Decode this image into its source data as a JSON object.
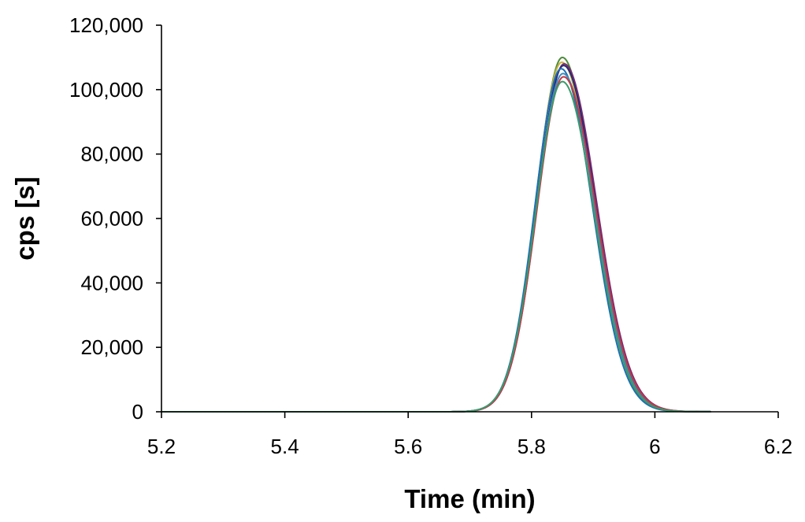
{
  "chart_data": {
    "type": "line",
    "title": "",
    "xlabel": "Time (min)",
    "ylabel": "cps [s]",
    "xlim": [
      5.2,
      6.2
    ],
    "ylim": [
      0,
      120000
    ],
    "grid": false,
    "legend": "none",
    "x_ticks": [
      5.2,
      5.4,
      5.6,
      5.8,
      6,
      6.2
    ],
    "x_tick_labels": [
      "5.2",
      "5.4",
      "5.6",
      "5.8",
      "6",
      "6.2"
    ],
    "y_ticks": [
      0,
      20000,
      40000,
      60000,
      80000,
      100000,
      120000
    ],
    "y_tick_labels": [
      "0",
      "20,000",
      "40,000",
      "60,000",
      "80,000",
      "100,000",
      "120,000"
    ],
    "x_range": [
      5.2,
      6.09
    ],
    "series": [
      {
        "color": "#4d8c3c",
        "peak_x": 5.85,
        "peak_y": 110000,
        "width_left": 0.042,
        "width_right": 0.05
      },
      {
        "color": "#c8b23c",
        "peak_x": 5.849,
        "peak_y": 108500,
        "width_left": 0.042,
        "width_right": 0.051
      },
      {
        "color": "#7b2d6e",
        "peak_x": 5.853,
        "peak_y": 108000,
        "width_left": 0.043,
        "width_right": 0.052
      },
      {
        "color": "#2a2a7a",
        "peak_x": 5.852,
        "peak_y": 107500,
        "width_left": 0.043,
        "width_right": 0.051
      },
      {
        "color": "#1f6fb4",
        "peak_x": 5.848,
        "peak_y": 106500,
        "width_left": 0.042,
        "width_right": 0.05
      },
      {
        "color": "#3b8fc0",
        "peak_x": 5.851,
        "peak_y": 105000,
        "width_left": 0.043,
        "width_right": 0.051
      },
      {
        "color": "#c23a4a",
        "peak_x": 5.852,
        "peak_y": 104000,
        "width_left": 0.043,
        "width_right": 0.052
      },
      {
        "color": "#3c9a6a",
        "peak_x": 5.85,
        "peak_y": 102500,
        "width_left": 0.043,
        "width_right": 0.051
      }
    ]
  }
}
